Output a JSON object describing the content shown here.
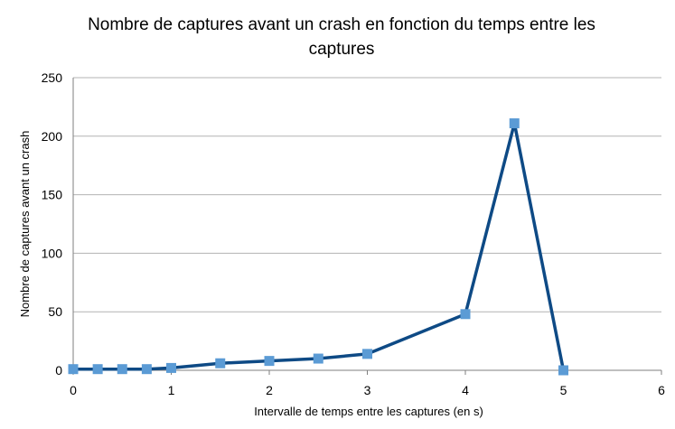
{
  "chart_data": {
    "type": "line",
    "title": "Nombre de captures avant un crash en fonction du temps entre les captures",
    "xlabel": "Intervalle de temps entre les captures (en s)",
    "ylabel": "Nombre de captures avant un crash",
    "xlim": [
      0,
      6
    ],
    "ylim": [
      0,
      250
    ],
    "xticks": [
      0,
      1,
      2,
      3,
      4,
      5,
      6
    ],
    "yticks": [
      0,
      50,
      100,
      150,
      200,
      250
    ],
    "grid": "horizontal",
    "legend": "none",
    "series": [
      {
        "x": [
          0,
          0.25,
          0.5,
          0.75,
          1,
          1.5,
          2,
          2.5,
          3,
          4,
          4.5,
          5
        ],
        "y": [
          1,
          1,
          1,
          1,
          2,
          6,
          8,
          10,
          14,
          48,
          211,
          0
        ]
      }
    ]
  },
  "colors": {
    "line": "#0E4A85",
    "marker": "#5B9BD5",
    "grid": "#B3B3B3",
    "axis": "#7F7F7F"
  }
}
